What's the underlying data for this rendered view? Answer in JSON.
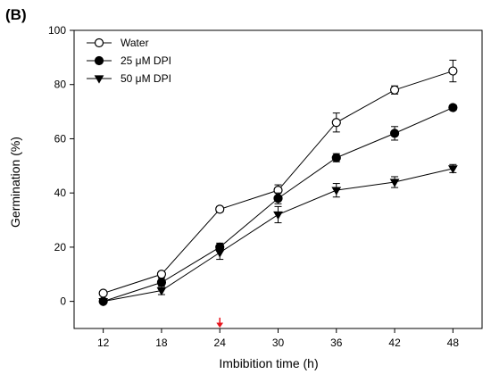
{
  "chart_data": {
    "type": "line",
    "panel_label": "(B)",
    "title": "",
    "xlabel": "Imbibition time (h)",
    "ylabel": "Germination (%)",
    "x": [
      12,
      18,
      24,
      30,
      36,
      42,
      48
    ],
    "x_ticks": [
      "12",
      "18",
      "24",
      "30",
      "36",
      "42",
      "48"
    ],
    "y_ticks": [
      "0",
      "20",
      "40",
      "60",
      "80",
      "100"
    ],
    "xlim": [
      9,
      51
    ],
    "ylim": [
      -10,
      100
    ],
    "grid": false,
    "legend_position": "top-left",
    "series": [
      {
        "name": "Water",
        "marker": "circle-open",
        "values": [
          3,
          10,
          34,
          41,
          66,
          78,
          85
        ],
        "errors": [
          0,
          1,
          1,
          2,
          3.5,
          1.5,
          4
        ]
      },
      {
        "name": "25 μM DPI",
        "marker": "circle-filled",
        "values": [
          0,
          7,
          20,
          38,
          53,
          62,
          71.5
        ],
        "errors": [
          0,
          1.5,
          1.5,
          2,
          1.5,
          2.5,
          1
        ]
      },
      {
        "name": "50 μM DPI",
        "marker": "triangle-down-filled",
        "values": [
          0,
          4,
          18,
          32,
          41,
          44,
          49
        ],
        "errors": [
          0,
          1.5,
          2.5,
          3,
          2.5,
          2,
          1.5
        ]
      }
    ],
    "annotation": {
      "type": "arrow",
      "x": 24,
      "color": "#e8141c"
    }
  }
}
